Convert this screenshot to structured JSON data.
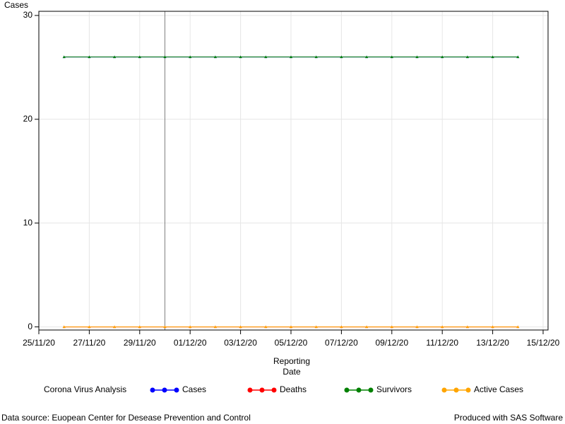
{
  "chart_data": {
    "type": "line",
    "y_label": "Cases",
    "x_label": "Reporting Date",
    "legend_title": "Corona Virus Analysis",
    "footnote_left": "Data source: Euopean Center for Desease Prevention and Control",
    "footnote_right": "Produced with SAS Software",
    "x": [
      "26/11/20",
      "27/11/20",
      "28/11/20",
      "29/11/20",
      "30/11/20",
      "01/12/20",
      "02/12/20",
      "03/12/20",
      "04/12/20",
      "05/12/20",
      "06/12/20",
      "07/12/20",
      "08/12/20",
      "09/12/20",
      "10/12/20",
      "11/12/20",
      "12/12/20",
      "13/12/20",
      "14/12/20"
    ],
    "series": [
      {
        "name": "Cases",
        "color": "#0000ff",
        "values": [
          26,
          26,
          26,
          26,
          26,
          26,
          26,
          26,
          26,
          26,
          26,
          26,
          26,
          26,
          26,
          26,
          26,
          26,
          26
        ]
      },
      {
        "name": "Deaths",
        "color": "#ff0000",
        "values": [
          0,
          0,
          0,
          0,
          0,
          0,
          0,
          0,
          0,
          0,
          0,
          0,
          0,
          0,
          0,
          0,
          0,
          0,
          0
        ]
      },
      {
        "name": "Survivors",
        "color": "#008000",
        "values": [
          26,
          26,
          26,
          26,
          26,
          26,
          26,
          26,
          26,
          26,
          26,
          26,
          26,
          26,
          26,
          26,
          26,
          26,
          26
        ]
      },
      {
        "name": "Active Cases",
        "color": "#ffa500",
        "values": [
          0,
          0,
          0,
          0,
          0,
          0,
          0,
          0,
          0,
          0,
          0,
          0,
          0,
          0,
          0,
          0,
          0,
          0,
          0
        ]
      }
    ],
    "xlim": [
      "25/11/20",
      "15/12/20"
    ],
    "xticks": [
      "25/11/20",
      "27/11/20",
      "29/11/20",
      "01/12/20",
      "03/12/20",
      "05/12/20",
      "07/12/20",
      "09/12/20",
      "11/12/20",
      "13/12/20",
      "15/12/20"
    ],
    "ylim": [
      -0.3,
      30.4
    ],
    "yticks": [
      0,
      10,
      20,
      30
    ],
    "reference_line_x": "30/11/20",
    "grid": true
  }
}
